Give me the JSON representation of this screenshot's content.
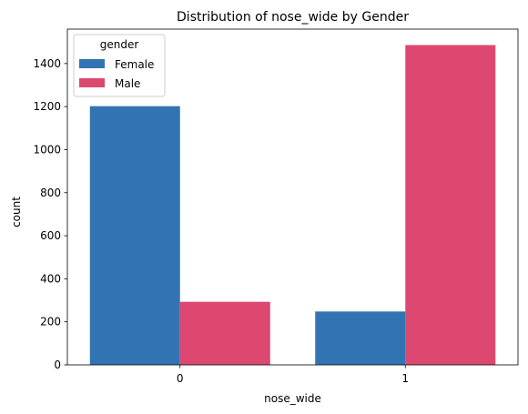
{
  "chart_data": {
    "type": "bar",
    "title": "Distribution of nose_wide by Gender",
    "xlabel": "nose_wide",
    "ylabel": "count",
    "categories": [
      "0",
      "1"
    ],
    "series": [
      {
        "name": "Female",
        "color": "#3274b2",
        "values": [
          1202,
          248
        ]
      },
      {
        "name": "Male",
        "color": "#dd4870",
        "values": [
          293,
          1486
        ]
      }
    ],
    "ylim": [
      0,
      1560
    ],
    "yticks": [
      0,
      200,
      400,
      600,
      800,
      1000,
      1200,
      1400
    ],
    "grid": false,
    "legend": {
      "title": "gender",
      "placement": "top-left"
    }
  }
}
